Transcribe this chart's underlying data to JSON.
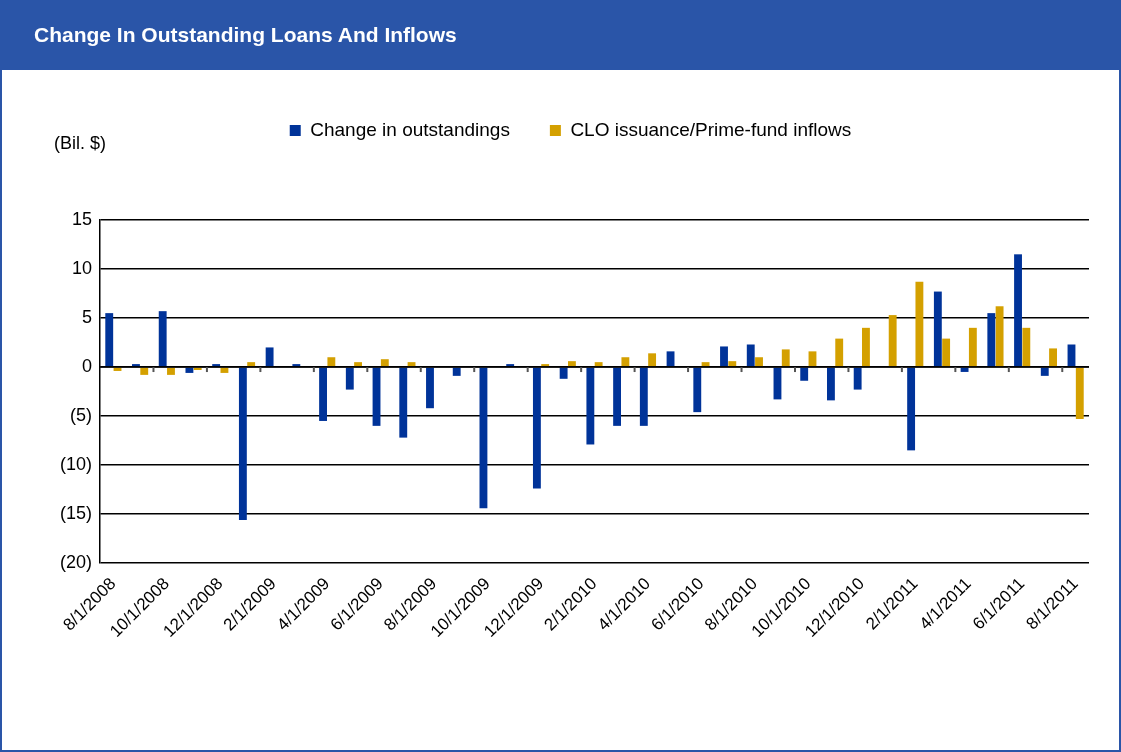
{
  "chart_data": {
    "type": "bar",
    "title": "Change In Outstanding Loans And Inflows",
    "ylabel": "(Bil. $)",
    "categories": [
      "8/1/2008",
      null,
      "10/1/2008",
      null,
      "12/1/2008",
      null,
      "2/1/2009",
      null,
      "4/1/2009",
      null,
      "6/1/2009",
      null,
      "8/1/2009",
      null,
      "10/1/2009",
      null,
      "12/1/2009",
      null,
      "2/1/2010",
      null,
      "4/1/2010",
      null,
      "6/1/2010",
      null,
      "8/1/2010",
      null,
      "10/1/2010",
      null,
      "12/1/2010",
      null,
      "2/1/2011",
      null,
      "4/1/2011",
      null,
      "6/1/2011",
      null,
      "8/1/2011"
    ],
    "series": [
      {
        "name": "Change in outstandings",
        "color": "#003399",
        "values": [
          5.5,
          0.3,
          5.7,
          -0.6,
          0.3,
          -15.6,
          2,
          0.3,
          -5.5,
          -2.3,
          -6,
          -7.2,
          -4.2,
          -0.9,
          -14.4,
          0.3,
          -12.4,
          -1.2,
          -7.9,
          -6,
          -6,
          1.6,
          -4.6,
          2.1,
          2.3,
          -3.3,
          -1.4,
          -3.4,
          -2.3,
          0,
          -8.5,
          7.7,
          -0.5,
          5.5,
          11.5,
          -0.9,
          2.3
        ]
      },
      {
        "name": "CLO issuance/Prime-fund inflows",
        "color": "#d4a000",
        "values": [
          -0.4,
          -0.8,
          -0.8,
          -0.3,
          -0.6,
          0.5,
          0,
          0,
          1,
          0.5,
          0.8,
          0.5,
          0,
          0,
          0,
          0,
          0.3,
          0.6,
          0.5,
          1,
          1.4,
          0,
          0.5,
          0.6,
          1,
          1.8,
          1.6,
          2.9,
          4,
          5.3,
          8.7,
          2.9,
          4,
          6.2,
          4,
          1.9,
          -5.3
        ]
      }
    ],
    "ylim": [
      -20,
      15
    ],
    "yticks": [
      {
        "value": -20,
        "label": "(20)"
      },
      {
        "value": -15,
        "label": "(15)"
      },
      {
        "value": -10,
        "label": "(10)"
      },
      {
        "value": -5,
        "label": "(5)"
      },
      0,
      5,
      10,
      15
    ],
    "grid": "y",
    "legend": "top"
  }
}
